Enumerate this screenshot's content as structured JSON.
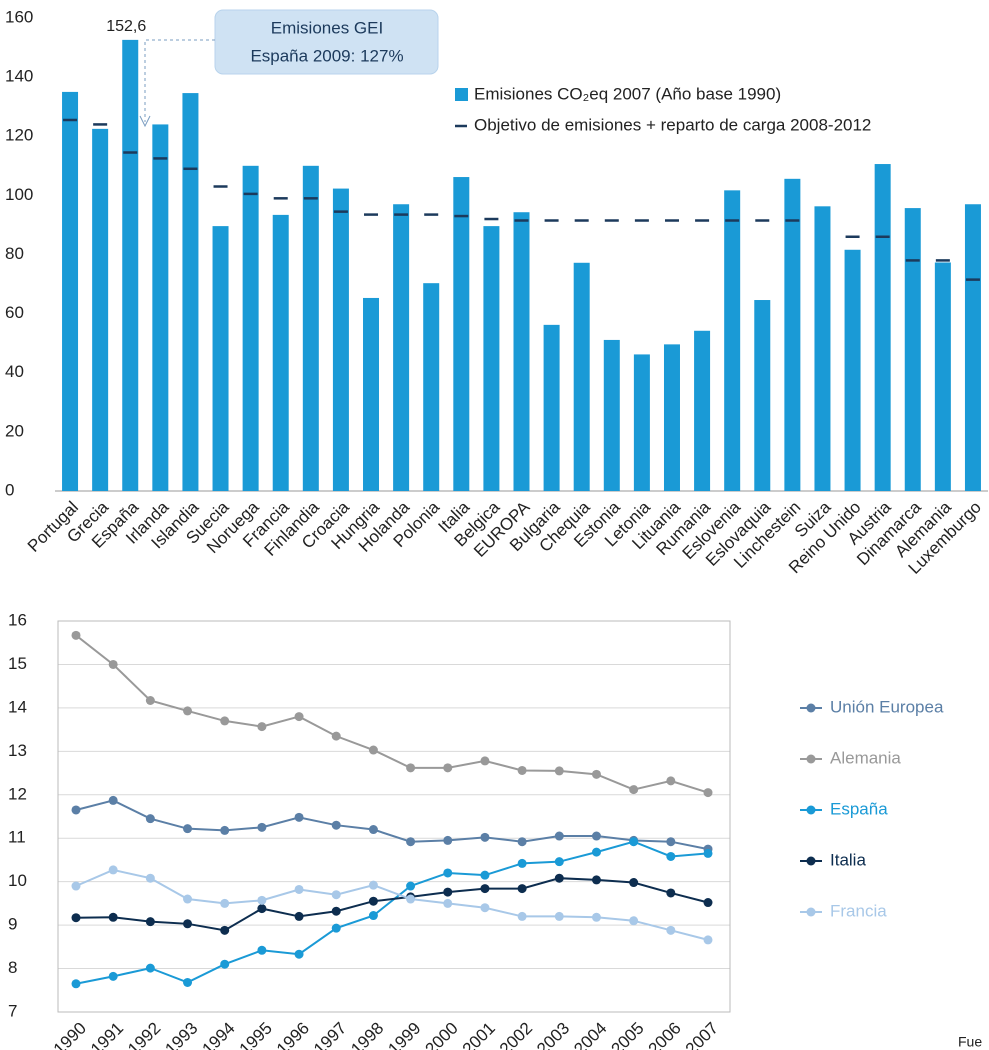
{
  "chart_data": [
    {
      "type": "bar",
      "categories": [
        "Portugal",
        "Grecia",
        "España",
        "Irlanda",
        "Islandia",
        "Suecia",
        "Noruega",
        "Francia",
        "Finlandia",
        "Croacia",
        "Hungria",
        "Holanda",
        "Polonia",
        "Italia",
        "Belgica",
        "EUROPA",
        "Bulgaria",
        "Chequia",
        "Estonia",
        "Letonia",
        "Lituania",
        "Rumania",
        "Eslovenia",
        "Eslovaquia",
        "Linchestein",
        "Suiza",
        "Reino Unido",
        "Austria",
        "Dinamarca",
        "Alemania",
        "Luxemburgo"
      ],
      "series": [
        {
          "name": "Emisiones CO₂eq 2007 (Año base 1990)",
          "color": "#1a9ad6",
          "style": "bar",
          "values": [
            135,
            122.5,
            152.6,
            124,
            134.6,
            89.6,
            110,
            93.4,
            110,
            102.3,
            65.3,
            97,
            70.3,
            106.2,
            89.6,
            94.3,
            56.2,
            77.2,
            51.1,
            46.2,
            49.6,
            54.2,
            101.7,
            64.6,
            105.6,
            96.3,
            81.6,
            110.6,
            95.7,
            77.3,
            97
          ],
          "value_labels": [
            null,
            null,
            "152,6",
            null,
            null,
            null,
            null,
            null,
            null,
            null,
            null,
            null,
            null,
            null,
            null,
            null,
            null,
            null,
            null,
            null,
            null,
            null,
            null,
            null,
            null,
            null,
            null,
            null,
            null,
            null,
            null
          ]
        },
        {
          "name": "Objetivo de emisiones + reparto de carga 2008-2012",
          "color": "#1c3a5c",
          "style": "dash",
          "values": [
            125.5,
            124,
            114.5,
            112.5,
            109,
            103,
            100.5,
            99,
            99,
            94.5,
            93.5,
            93.5,
            93.5,
            93,
            92,
            91.5,
            91.5,
            91.5,
            91.5,
            91.5,
            91.5,
            91.5,
            91.5,
            91.5,
            91.5,
            null,
            86,
            86,
            78,
            78,
            71.5
          ]
        }
      ],
      "annotation": [
        "Emisiones GEI",
        "España 2009: 127%"
      ],
      "ylim": [
        0,
        160
      ],
      "yticks": [
        0,
        20,
        40,
        60,
        80,
        100,
        120,
        140,
        160
      ],
      "grid": false
    },
    {
      "type": "line",
      "categories": [
        "1990",
        "1991",
        "1992",
        "1993",
        "1994",
        "1995",
        "1996",
        "1997",
        "1998",
        "1999",
        "2000",
        "2001",
        "2002",
        "2003",
        "2004",
        "2005",
        "2006",
        "2007"
      ],
      "series": [
        {
          "name": "Unión Europea",
          "color": "#5b7fa6",
          "values": [
            11.65,
            11.87,
            11.45,
            11.22,
            11.18,
            11.25,
            11.48,
            11.3,
            11.2,
            10.92,
            10.95,
            11.02,
            10.92,
            11.05,
            11.05,
            10.95,
            10.92,
            10.75
          ]
        },
        {
          "name": "Alemania",
          "color": "#999999",
          "values": [
            15.67,
            15.0,
            14.17,
            13.93,
            13.7,
            13.57,
            13.8,
            13.35,
            13.03,
            12.62,
            12.62,
            12.78,
            12.56,
            12.55,
            12.47,
            12.12,
            12.32,
            12.05
          ]
        },
        {
          "name": "España",
          "color": "#1a9ad6",
          "values": [
            7.65,
            7.82,
            8.01,
            7.68,
            8.1,
            8.42,
            8.33,
            8.93,
            9.22,
            9.9,
            10.2,
            10.15,
            10.42,
            10.46,
            10.68,
            10.92,
            10.58,
            10.65
          ]
        },
        {
          "name": "Italia",
          "color": "#0d2d4f",
          "values": [
            9.17,
            9.18,
            9.08,
            9.03,
            8.88,
            9.38,
            9.2,
            9.32,
            9.55,
            9.65,
            9.76,
            9.84,
            9.84,
            10.08,
            10.04,
            9.98,
            9.74,
            9.52
          ]
        },
        {
          "name": "Francia",
          "color": "#a8c8e8",
          "values": [
            9.9,
            10.27,
            10.08,
            9.6,
            9.5,
            9.57,
            9.82,
            9.7,
            9.92,
            9.6,
            9.5,
            9.4,
            9.2,
            9.2,
            9.18,
            9.1,
            8.88,
            8.66
          ]
        }
      ],
      "ylim": [
        7,
        16
      ],
      "yticks": [
        7,
        8,
        9,
        10,
        11,
        12,
        13,
        14,
        15,
        16
      ],
      "grid": true,
      "source_fragment": "Fue"
    }
  ]
}
